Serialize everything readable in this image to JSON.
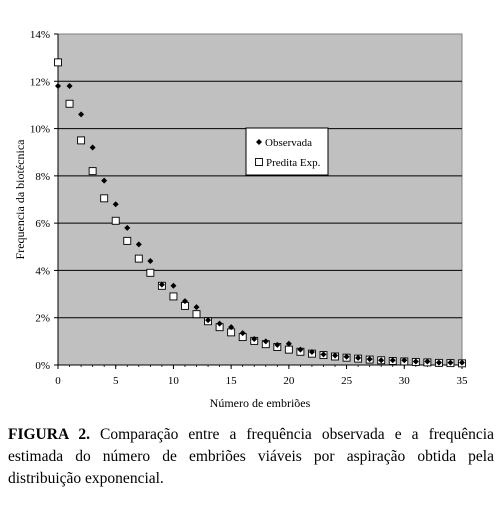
{
  "chart_data": {
    "type": "scatter",
    "xlabel": "Número de embriões",
    "ylabel": "Frequencia da biotécnica",
    "xlim": [
      0,
      35
    ],
    "ylim": [
      0,
      14
    ],
    "x_ticks": [
      "0",
      "5",
      "10",
      "15",
      "20",
      "25",
      "30",
      "35"
    ],
    "y_ticks": [
      "0%",
      "2%",
      "4%",
      "6%",
      "8%",
      "10%",
      "12%",
      "14%"
    ],
    "grid": "horizontal",
    "background": "#c0c0c0",
    "legend_position": "center-right",
    "series": [
      {
        "name": "Observada",
        "marker": "diamond",
        "color": "#000000",
        "x": [
          0,
          1,
          2,
          3,
          4,
          5,
          6,
          7,
          8,
          9,
          10,
          11,
          12,
          13,
          14,
          15,
          16,
          17,
          18,
          19,
          20,
          21,
          22,
          23,
          24,
          25,
          26,
          27,
          28,
          29,
          30,
          31,
          32,
          33,
          34,
          35
        ],
        "y": [
          11.8,
          11.8,
          10.6,
          9.2,
          7.8,
          6.8,
          5.8,
          5.1,
          4.4,
          3.4,
          3.35,
          2.7,
          2.45,
          1.9,
          1.75,
          1.6,
          1.35,
          1.1,
          1.0,
          0.85,
          0.9,
          0.65,
          0.55,
          0.45,
          0.4,
          0.35,
          0.3,
          0.25,
          0.2,
          0.2,
          0.2,
          0.15,
          0.15,
          0.1,
          0.1,
          0.1
        ]
      },
      {
        "name": "Predita Exp.",
        "marker": "square",
        "color": "#ffffff",
        "x": [
          0,
          1,
          2,
          3,
          4,
          5,
          6,
          7,
          8,
          9,
          10,
          11,
          12,
          13,
          14,
          15,
          16,
          17,
          18,
          19,
          20,
          21,
          22,
          23,
          24,
          25,
          26,
          27,
          28,
          29,
          30,
          31,
          32,
          33,
          34,
          35
        ],
        "y": [
          12.8,
          11.05,
          9.5,
          8.2,
          7.05,
          6.1,
          5.25,
          4.5,
          3.9,
          3.35,
          2.9,
          2.5,
          2.15,
          1.85,
          1.6,
          1.38,
          1.18,
          1.02,
          0.88,
          0.76,
          0.65,
          0.56,
          0.48,
          0.42,
          0.36,
          0.31,
          0.27,
          0.23,
          0.2,
          0.17,
          0.15,
          0.13,
          0.11,
          0.09,
          0.08,
          0.07
        ]
      }
    ]
  },
  "caption": {
    "label": "FIGURA 2.",
    "text": " Comparação entre a frequência observada e a frequência estimada do número de embriões viáveis por aspiração obtida pela distribuição exponencial."
  }
}
